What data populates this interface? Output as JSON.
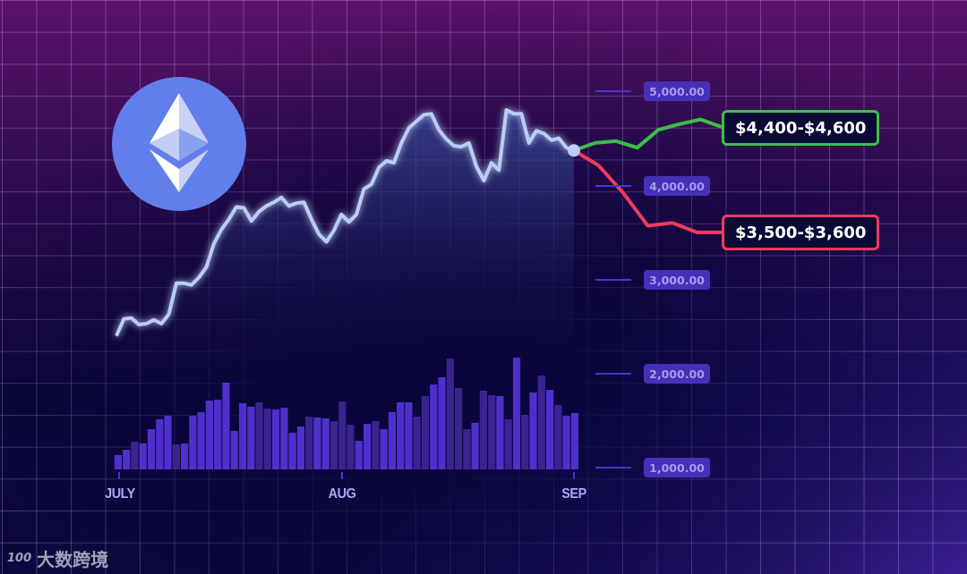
{
  "chart_data": {
    "type": "line",
    "title": "",
    "y_axis": {
      "ticks": [
        "5,000.00",
        "4,000.00",
        "3,000.00",
        "2,000.00",
        "1,000.00"
      ],
      "tick_values": [
        5000,
        4000,
        3000,
        2000,
        1000
      ]
    },
    "x_axis": {
      "ticks": [
        "JULY",
        "AUG",
        "SEP"
      ]
    },
    "grid": true,
    "price": [
      2400,
      2580,
      2590,
      2520,
      2530,
      2570,
      2530,
      2630,
      2960,
      2960,
      2940,
      3020,
      3130,
      3380,
      3530,
      3640,
      3770,
      3760,
      3620,
      3720,
      3780,
      3820,
      3870,
      3780,
      3810,
      3820,
      3640,
      3480,
      3400,
      3520,
      3690,
      3610,
      3690,
      3960,
      4010,
      4190,
      4260,
      4240,
      4450,
      4610,
      4680,
      4750,
      4760,
      4590,
      4490,
      4420,
      4410,
      4450,
      4200,
      4050,
      4240,
      4160,
      4800,
      4760,
      4760,
      4450,
      4580,
      4550,
      4480,
      4500,
      4400,
      4370
    ],
    "forecast": [
      {
        "label": "$4,400-$4,600",
        "color": "#3cbf48",
        "values": [
          4370,
          4450,
          4470,
          4400,
          4590,
          4650,
          4700,
          4620
        ]
      },
      {
        "label": "$3,500-$3,600",
        "color": "#f03a5e",
        "values": [
          4370,
          4210,
          3920,
          3570,
          3600,
          3500,
          3500
        ]
      }
    ],
    "volume_relative": [
      16,
      22,
      31,
      29,
      45,
      56,
      60,
      28,
      29,
      60,
      64,
      77,
      78,
      97,
      43,
      74,
      70,
      75,
      68,
      67,
      69,
      41,
      48,
      59,
      58,
      57,
      54,
      76,
      50,
      32,
      51,
      54,
      45,
      64,
      75,
      75,
      59,
      82,
      95,
      103,
      124,
      91,
      45,
      52,
      88,
      83,
      82,
      56,
      125,
      61,
      86,
      105,
      89,
      72,
      60,
      63
    ],
    "volume_dark": [
      2,
      7,
      17,
      18,
      23,
      26,
      27,
      28,
      31,
      36,
      37,
      40,
      41,
      42,
      44,
      45,
      47,
      49,
      51,
      53
    ],
    "colors": {
      "line": "#b9cdf5",
      "volume": "#5030cc",
      "volume_dark": "#3a2490",
      "axis_label": "#4630b8"
    }
  },
  "logo": {
    "name": "ethereum-logo",
    "color": "#627eea"
  },
  "watermark": {
    "text": "大数跨境",
    "mark": "100"
  }
}
